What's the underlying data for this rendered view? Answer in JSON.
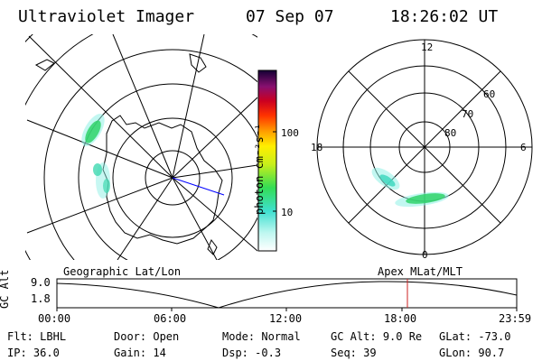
{
  "header": {
    "title": "Ultraviolet Imager",
    "date": "07 Sep 07",
    "time": "18:26:02 UT"
  },
  "colorbar": {
    "unit_label": "photon cm⁻²s⁻¹",
    "ticks": [
      "100",
      "10"
    ]
  },
  "polar_plot": {
    "mlt_labels": {
      "top": "12",
      "left": "18",
      "right": "6",
      "bottom": "0"
    },
    "lat_labels": [
      "60",
      "70",
      "80"
    ]
  },
  "timeline": {
    "left_label": "Geographic Lat/Lon",
    "right_label": "Apex  MLat/MLT",
    "y_axis_title": "GC Alt",
    "y_ticks": [
      "9.0",
      "1.8"
    ],
    "x_ticks": [
      "00:00",
      "06:00",
      "12:00",
      "18:00",
      "23:59"
    ],
    "current_marker_time": "18:26"
  },
  "status": {
    "row1": [
      {
        "key": "Flt:",
        "value": "LBHL"
      },
      {
        "key": "Door:",
        "value": "Open"
      },
      {
        "key": "Mode:",
        "value": "Normal"
      },
      {
        "key": "GC Alt:",
        "value": "9.0 Re"
      },
      {
        "key": "GLat:",
        "value": "-73.0"
      }
    ],
    "row2": [
      {
        "key": "IP:",
        "value": "36.0"
      },
      {
        "key": "Gain:",
        "value": "14"
      },
      {
        "key": "Dsp:",
        "value": "-0.3"
      },
      {
        "key": "Seq:",
        "value": "39"
      },
      {
        "key": "GLon:",
        "value": "90.7"
      }
    ]
  },
  "colors": {
    "aurora_green": "#2fd36a",
    "aurora_cyan": "#66e6d6",
    "marker_red": "#cc2222"
  }
}
